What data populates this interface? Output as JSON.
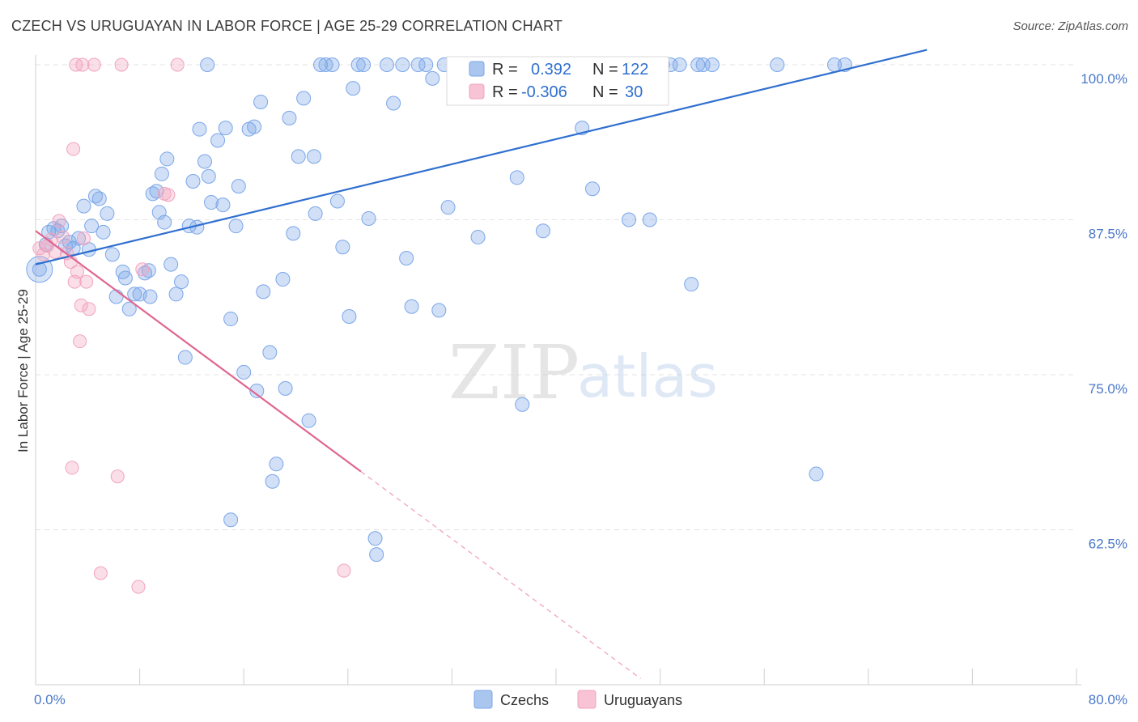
{
  "title": "CZECH VS URUGUAYAN IN LABOR FORCE | AGE 25-29 CORRELATION CHART",
  "source": "Source: ZipAtlas.com",
  "watermark": {
    "zip": "ZIP",
    "atlas": "atlas"
  },
  "chart_data": {
    "type": "scatter",
    "ylabel": "In Labor Force | Age 25-29",
    "xlim": [
      0,
      80
    ],
    "ylim": [
      50,
      100
    ],
    "x_tick_labels": [
      "0.0%",
      "80.0%"
    ],
    "y_ticks": [
      100,
      87.5,
      75,
      62.5
    ],
    "y_tick_labels": [
      "100.0%",
      "87.5%",
      "75.0%",
      "62.5%"
    ],
    "grid": true,
    "legend_placement": "top-center",
    "colors": {
      "czechs": "#7aa6e8",
      "czechs_line": "#2f6fcf",
      "uruguayans": "#f2a3be",
      "uruguayans_line": "#e06690",
      "value_text": "#2f6fcf"
    },
    "legend_stats": [
      {
        "r_label": "R =",
        "r": "0.392",
        "n_label": "N =",
        "n": "122"
      },
      {
        "r_label": "R =",
        "r": "-0.306",
        "n_label": "N =",
        "n": "30"
      }
    ],
    "series": [
      {
        "name": "Czechs",
        "trend": {
          "x": [
            0,
            68.5
          ],
          "y": [
            83.9,
            101.2
          ]
        },
        "points": [
          [
            0.3,
            83.5
          ],
          [
            0.8,
            85.5
          ],
          [
            1.0,
            86.5
          ],
          [
            1.4,
            86.8
          ],
          [
            1.7,
            86.6
          ],
          [
            2.0,
            87.0
          ],
          [
            2.3,
            85.4
          ],
          [
            2.6,
            85.7
          ],
          [
            2.9,
            85.2
          ],
          [
            3.3,
            86.0
          ],
          [
            3.7,
            88.6
          ],
          [
            4.1,
            85.1
          ],
          [
            4.3,
            87.0
          ],
          [
            4.6,
            89.4
          ],
          [
            4.9,
            89.2
          ],
          [
            5.2,
            86.5
          ],
          [
            5.5,
            88.0
          ],
          [
            5.9,
            84.7
          ],
          [
            6.2,
            81.3
          ],
          [
            6.7,
            83.3
          ],
          [
            6.9,
            82.8
          ],
          [
            7.2,
            80.3
          ],
          [
            7.6,
            81.5
          ],
          [
            8.0,
            81.5
          ],
          [
            8.4,
            83.2
          ],
          [
            8.7,
            83.4
          ],
          [
            8.8,
            81.3
          ],
          [
            9.0,
            89.6
          ],
          [
            9.3,
            89.8
          ],
          [
            9.5,
            88.1
          ],
          [
            9.7,
            91.2
          ],
          [
            9.9,
            87.3
          ],
          [
            10.1,
            92.4
          ],
          [
            10.4,
            83.9
          ],
          [
            10.8,
            81.5
          ],
          [
            11.2,
            82.5
          ],
          [
            11.5,
            76.4
          ],
          [
            11.8,
            87.0
          ],
          [
            12.1,
            90.6
          ],
          [
            12.4,
            86.9
          ],
          [
            12.6,
            94.8
          ],
          [
            13.0,
            92.2
          ],
          [
            13.3,
            91.0
          ],
          [
            13.5,
            88.9
          ],
          [
            14.0,
            93.9
          ],
          [
            14.4,
            88.7
          ],
          [
            14.6,
            94.9
          ],
          [
            15.0,
            79.5
          ],
          [
            15.4,
            87.0
          ],
          [
            15.6,
            90.2
          ],
          [
            16.0,
            75.2
          ],
          [
            16.4,
            94.8
          ],
          [
            16.8,
            95.0
          ],
          [
            17.0,
            73.7
          ],
          [
            17.3,
            97.0
          ],
          [
            17.5,
            81.7
          ],
          [
            18.0,
            76.8
          ],
          [
            18.5,
            67.8
          ],
          [
            19.0,
            82.7
          ],
          [
            19.2,
            73.9
          ],
          [
            19.5,
            95.7
          ],
          [
            19.8,
            86.4
          ],
          [
            20.2,
            92.6
          ],
          [
            20.6,
            97.3
          ],
          [
            21.0,
            71.3
          ],
          [
            21.4,
            92.6
          ],
          [
            21.9,
            100.0
          ],
          [
            22.3,
            100.0
          ],
          [
            22.8,
            100.0
          ],
          [
            23.2,
            89.0
          ],
          [
            23.6,
            85.3
          ],
          [
            24.1,
            79.7
          ],
          [
            24.4,
            98.1
          ],
          [
            24.8,
            100.0
          ],
          [
            25.2,
            100.0
          ],
          [
            25.6,
            87.6
          ],
          [
            26.1,
            61.8
          ],
          [
            27.0,
            100.0
          ],
          [
            27.5,
            96.9
          ],
          [
            28.2,
            100.0
          ],
          [
            28.5,
            84.4
          ],
          [
            28.9,
            80.5
          ],
          [
            29.4,
            100.0
          ],
          [
            30.0,
            100.0
          ],
          [
            30.5,
            98.9
          ],
          [
            31.0,
            80.2
          ],
          [
            31.4,
            100.0
          ],
          [
            31.7,
            88.5
          ],
          [
            32.2,
            100.0
          ],
          [
            33.1,
            100.0
          ],
          [
            33.8,
            100.0
          ],
          [
            34.0,
            86.1
          ],
          [
            35.0,
            100.0
          ],
          [
            36.0,
            100.0
          ],
          [
            37.0,
            90.9
          ],
          [
            37.4,
            72.6
          ],
          [
            37.9,
            100.0
          ],
          [
            38.5,
            100.0
          ],
          [
            39.0,
            86.6
          ],
          [
            40.2,
            100.0
          ],
          [
            40.7,
            100.0
          ],
          [
            41.5,
            100.0
          ],
          [
            42.0,
            94.9
          ],
          [
            42.8,
            90.0
          ],
          [
            43.5,
            100.0
          ],
          [
            44.2,
            100.0
          ],
          [
            44.8,
            100.0
          ],
          [
            45.2,
            100.0
          ],
          [
            45.6,
            87.5
          ],
          [
            46.1,
            100.0
          ],
          [
            47.2,
            87.5
          ],
          [
            47.6,
            100.0
          ],
          [
            48.2,
            100.0
          ],
          [
            48.8,
            100.0
          ],
          [
            49.5,
            100.0
          ],
          [
            50.4,
            82.3
          ],
          [
            50.9,
            100.0
          ],
          [
            51.3,
            100.0
          ],
          [
            52.0,
            100.0
          ],
          [
            57.0,
            100.0
          ],
          [
            60.0,
            67.0
          ],
          [
            61.4,
            100.0
          ],
          [
            62.2,
            100.0
          ],
          [
            21.5,
            88.0
          ],
          [
            18.2,
            66.4
          ],
          [
            15.0,
            63.3
          ],
          [
            26.2,
            60.5
          ],
          [
            13.2,
            100.0
          ]
        ]
      },
      {
        "name": "Uruguayans",
        "trend": {
          "x": [
            0,
            25
          ],
          "y": [
            86.6,
            67.2
          ]
        },
        "trend_dashed": {
          "x": [
            25,
            46.5
          ],
          "y": [
            67.2,
            50.5
          ]
        },
        "points": [
          [
            0.3,
            85.2
          ],
          [
            0.6,
            84.7
          ],
          [
            0.9,
            85.4
          ],
          [
            1.2,
            85.9
          ],
          [
            1.5,
            84.9
          ],
          [
            1.8,
            87.4
          ],
          [
            2.1,
            86.1
          ],
          [
            2.4,
            84.8
          ],
          [
            2.7,
            84.1
          ],
          [
            2.9,
            93.2
          ],
          [
            3.0,
            82.5
          ],
          [
            3.2,
            83.3
          ],
          [
            3.4,
            77.7
          ],
          [
            3.5,
            80.6
          ],
          [
            3.7,
            86.0
          ],
          [
            3.9,
            82.5
          ],
          [
            4.1,
            80.3
          ],
          [
            2.8,
            67.5
          ],
          [
            6.3,
            66.8
          ],
          [
            5.0,
            59.0
          ],
          [
            7.9,
            57.9
          ],
          [
            23.7,
            59.2
          ],
          [
            8.2,
            83.5
          ],
          [
            9.9,
            89.6
          ],
          [
            10.2,
            89.5
          ],
          [
            3.1,
            100.0
          ],
          [
            3.6,
            100.0
          ],
          [
            4.5,
            100.0
          ],
          [
            6.6,
            100.0
          ],
          [
            10.9,
            100.0
          ]
        ]
      }
    ]
  }
}
